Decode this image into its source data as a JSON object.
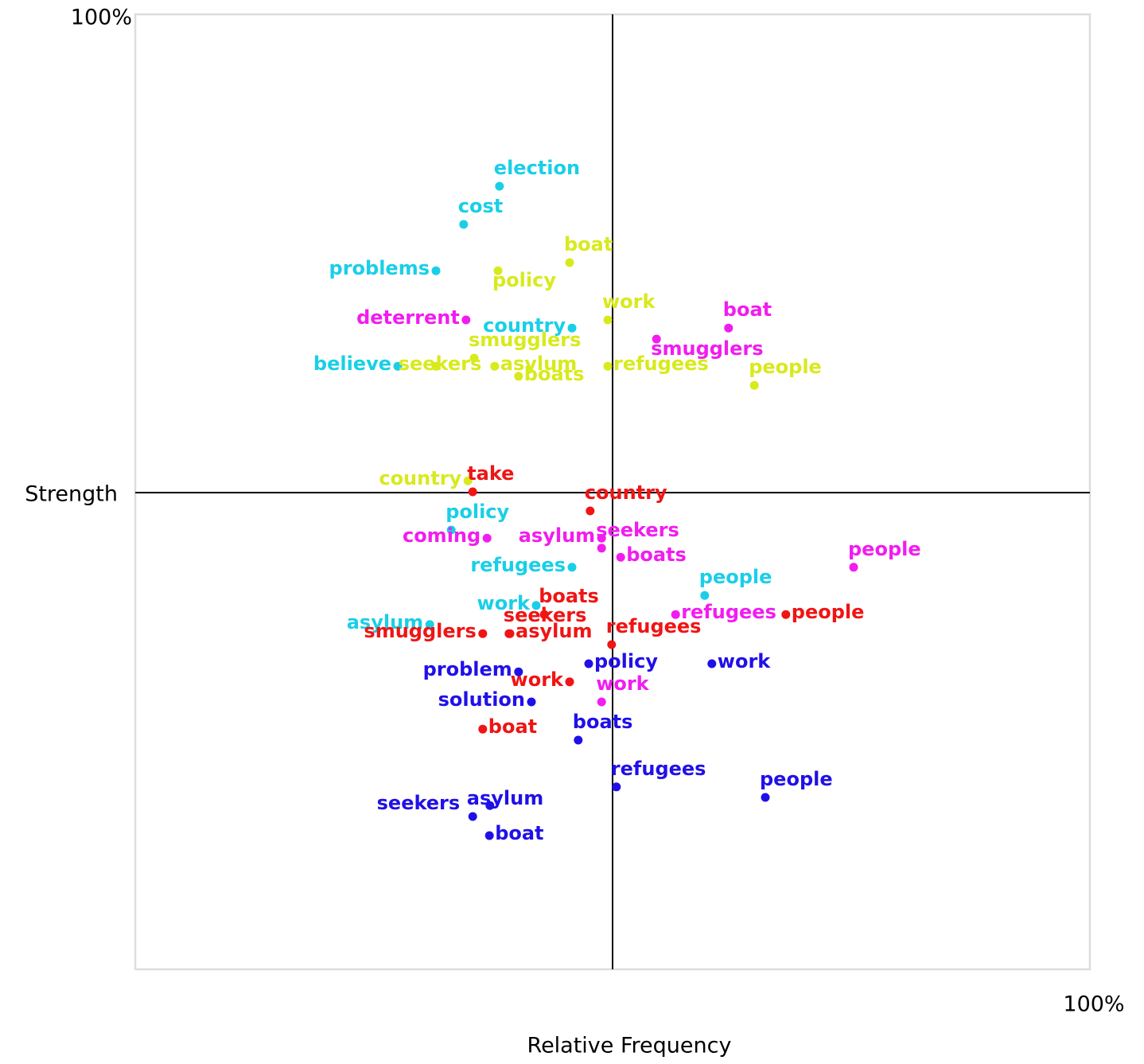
{
  "chart_data": {
    "type": "scatter",
    "xlabel": "Relative Frequency",
    "ylabel": "Strength",
    "xlim": [
      -100,
      100
    ],
    "ylim": [
      -100,
      100
    ],
    "xticks": [
      {
        "value": 100,
        "label": "100%"
      }
    ],
    "yticks": [
      {
        "value": 100,
        "label": "100%"
      }
    ],
    "series": [
      {
        "color": "#19cfe8",
        "labels": [
          "election",
          "cost",
          "problems",
          "country",
          "believe",
          "policy",
          "refugees",
          "work",
          "people",
          "asylum"
        ],
        "x": [
          -23.7,
          -31.2,
          -37,
          -8.5,
          -45,
          -33.8,
          -8.5,
          -16,
          19.3,
          -38.3
        ],
        "values": [
          64,
          56,
          46.3,
          34.3,
          26.3,
          -8,
          -15.8,
          -23.8,
          -21.7,
          -27.8
        ]
      },
      {
        "color": "#d8ea1c",
        "labels": [
          "boat",
          "policy",
          "work",
          "smugglers",
          "seekers",
          "asylum",
          "boats",
          "refugees",
          "people",
          "country"
        ],
        "x": [
          -9,
          -24,
          -1,
          -29,
          -37,
          -24.7,
          -19.7,
          -1,
          29.7,
          -30.3
        ],
        "values": [
          48,
          46.3,
          36,
          28,
          26.3,
          26.3,
          24.2,
          26.3,
          22.3,
          2.3
        ]
      },
      {
        "color": "#f21cf0",
        "labels": [
          "boat",
          "deterrent",
          "smugglers",
          "coming",
          "asylum",
          "seekers",
          "boats",
          "people",
          "refugees",
          "work"
        ],
        "x": [
          24.3,
          -30.7,
          9.2,
          -26.3,
          -2.3,
          -2.3,
          1.7,
          50.5,
          13.2,
          -2.3
        ],
        "values": [
          34.3,
          36,
          32,
          -9.7,
          -9.7,
          -11.8,
          -13.7,
          -15.8,
          -25.7,
          -44
        ]
      },
      {
        "color": "#f01414",
        "labels": [
          "take",
          "country",
          "boats",
          "seekers",
          "asylum",
          "smugglers",
          "refugees",
          "people",
          "work",
          "boat"
        ],
        "x": [
          -29.3,
          -4.7,
          -14.3,
          -21.7,
          -21.5,
          -27.2,
          -0.2,
          36.3,
          -9,
          -27.2
        ],
        "values": [
          0,
          -4,
          -25.7,
          -29.7,
          -29.7,
          -29.7,
          -32,
          -25.7,
          -39.8,
          -49.7
        ]
      },
      {
        "color": "#2010e8",
        "labels": [
          "policy",
          "work",
          "problem",
          "solution",
          "boats",
          "refugees",
          "people",
          "asylum",
          "seekers",
          "boat"
        ],
        "x": [
          -5,
          20.8,
          -19.7,
          -17,
          -7.2,
          0.8,
          32,
          -25.7,
          -29.3,
          -25.8
        ],
        "values": [
          -36,
          -36,
          -37.7,
          -44,
          -52,
          -61.8,
          -64,
          -65.7,
          -68,
          -72
        ]
      }
    ]
  }
}
